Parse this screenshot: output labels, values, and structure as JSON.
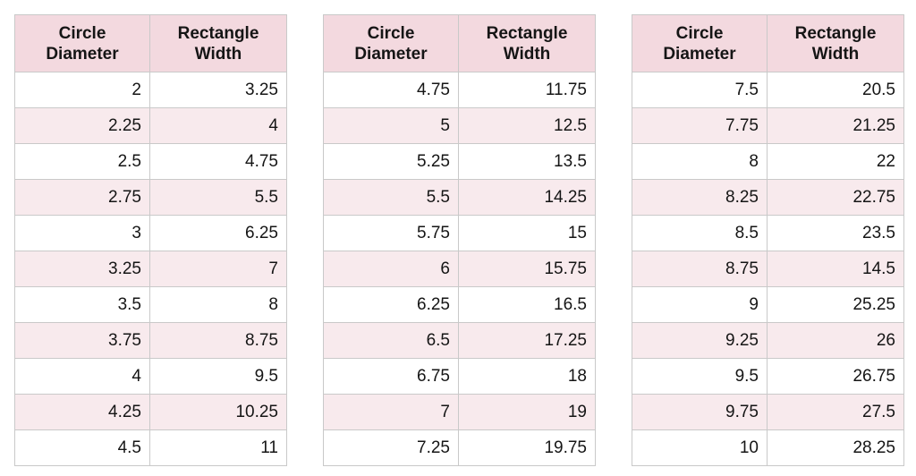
{
  "headers": {
    "col1": [
      "Circle",
      "Diameter"
    ],
    "col2": [
      "Rectangle",
      "Width"
    ]
  },
  "tables": [
    {
      "rows": [
        [
          "2",
          "3.25"
        ],
        [
          "2.25",
          "4"
        ],
        [
          "2.5",
          "4.75"
        ],
        [
          "2.75",
          "5.5"
        ],
        [
          "3",
          "6.25"
        ],
        [
          "3.25",
          "7"
        ],
        [
          "3.5",
          "8"
        ],
        [
          "3.75",
          "8.75"
        ],
        [
          "4",
          "9.5"
        ],
        [
          "4.25",
          "10.25"
        ],
        [
          "4.5",
          "11"
        ]
      ]
    },
    {
      "rows": [
        [
          "4.75",
          "11.75"
        ],
        [
          "5",
          "12.5"
        ],
        [
          "5.25",
          "13.5"
        ],
        [
          "5.5",
          "14.25"
        ],
        [
          "5.75",
          "15"
        ],
        [
          "6",
          "15.75"
        ],
        [
          "6.25",
          "16.5"
        ],
        [
          "6.5",
          "17.25"
        ],
        [
          "6.75",
          "18"
        ],
        [
          "7",
          "19"
        ],
        [
          "7.25",
          "19.75"
        ]
      ]
    },
    {
      "rows": [
        [
          "7.5",
          "20.5"
        ],
        [
          "7.75",
          "21.25"
        ],
        [
          "8",
          "22"
        ],
        [
          "8.25",
          "22.75"
        ],
        [
          "8.5",
          "23.5"
        ],
        [
          "8.75",
          "14.5"
        ],
        [
          "9",
          "25.25"
        ],
        [
          "9.25",
          "26"
        ],
        [
          "9.5",
          "26.75"
        ],
        [
          "9.75",
          "27.5"
        ],
        [
          "10",
          "28.25"
        ]
      ]
    }
  ]
}
